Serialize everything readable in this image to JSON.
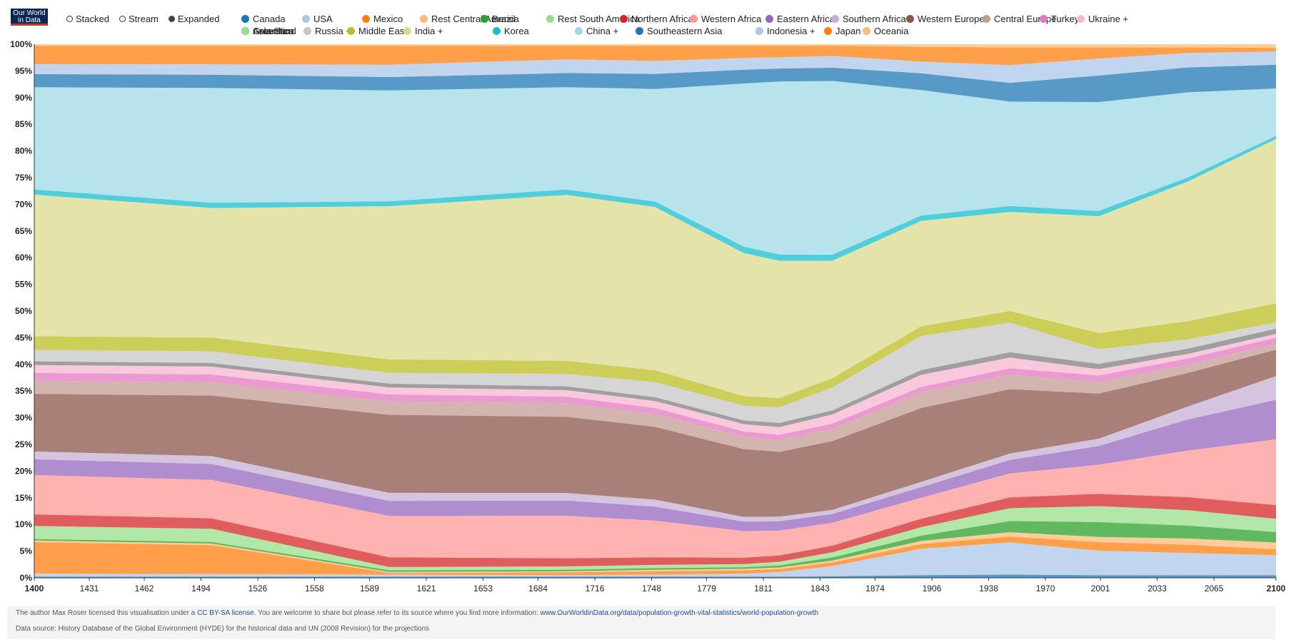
{
  "logo": {
    "line1": "Our World",
    "line2": "in Data"
  },
  "modes": [
    {
      "label": "Stacked",
      "selected": false
    },
    {
      "label": "Stream",
      "selected": false
    },
    {
      "label": "Expanded",
      "selected": true
    }
  ],
  "footer": {
    "license_prefix": "The author Max Roser licensed this visualisation under a",
    "license_link": "CC BY-SA license",
    "license_mid": ". You are welcome to share but please refer to its source where you find more information:",
    "source_link": "www.OurWorldinData.org/data/population-growth-vital-statistics/world-population-growth",
    "data_source": "Data source: History Database of the Global Environment (HYDE) for the historical data and UN (2008 Revision) for the projections"
  },
  "chart_data": {
    "type": "area",
    "stacking": "expanded (percent)",
    "x_ticks": [
      "1400",
      "1431",
      "1462",
      "1494",
      "1526",
      "1558",
      "1589",
      "1621",
      "1653",
      "1684",
      "1716",
      "1748",
      "1779",
      "1811",
      "1843",
      "1874",
      "1906",
      "1938",
      "1970",
      "2001",
      "2033",
      "2065",
      "2100"
    ],
    "y_ticks": [
      "0%",
      "5%",
      "10%",
      "15%",
      "20%",
      "25%",
      "30%",
      "35%",
      "40%",
      "45%",
      "50%",
      "55%",
      "60%",
      "65%",
      "70%",
      "75%",
      "80%",
      "85%",
      "90%",
      "95%",
      "100%"
    ],
    "ylim": [
      0,
      100
    ],
    "x": [
      1400,
      1500,
      1600,
      1700,
      1750,
      1800,
      1820,
      1850,
      1900,
      1950,
      2000,
      2050,
      2100
    ],
    "series": [
      {
        "name": "Canada",
        "color": "#1f77b4",
        "values": [
          0.2,
          0.2,
          0.2,
          0.2,
          0.2,
          0.2,
          0.2,
          0.3,
          0.5,
          0.6,
          0.5,
          0.5,
          0.5
        ]
      },
      {
        "name": "USA",
        "color": "#aec7e8",
        "values": [
          0.6,
          0.5,
          0.4,
          0.3,
          0.4,
          0.6,
          0.9,
          2.0,
          5.0,
          6.0,
          4.6,
          4.3,
          3.8
        ]
      },
      {
        "name": "Mexico",
        "color": "#ff7f0e",
        "values": [
          6.0,
          5.5,
          0.3,
          0.5,
          0.6,
          0.6,
          0.6,
          0.7,
          0.9,
          1.1,
          1.6,
          1.6,
          1.1
        ]
      },
      {
        "name": "Rest Central America",
        "color": "#ffbb78",
        "values": [
          0.3,
          0.3,
          0.2,
          0.2,
          0.3,
          0.3,
          0.3,
          0.4,
          0.6,
          0.8,
          1.0,
          1.2,
          1.3
        ]
      },
      {
        "name": "Brazil",
        "color": "#2ca02c",
        "values": [
          0.3,
          0.3,
          0.3,
          0.3,
          0.3,
          0.3,
          0.4,
          0.6,
          1.0,
          2.1,
          2.8,
          2.5,
          2.0
        ]
      },
      {
        "name": "Rest South America",
        "color": "#98df8a",
        "values": [
          2.5,
          2.5,
          0.6,
          0.6,
          0.6,
          0.6,
          0.7,
          1.0,
          1.6,
          2.4,
          3.0,
          3.0,
          2.5
        ]
      },
      {
        "name": "Northern Africa",
        "color": "#d62728",
        "values": [
          2.2,
          2.0,
          1.8,
          1.5,
          1.4,
          1.2,
          1.2,
          1.3,
          1.6,
          2.0,
          2.3,
          2.5,
          2.6
        ]
      },
      {
        "name": "Western Africa",
        "color": "#ff9896",
        "values": [
          7.5,
          7.3,
          7.7,
          7.8,
          6.8,
          5.0,
          4.8,
          4.5,
          4.0,
          4.5,
          5.5,
          9.0,
          12.5
        ]
      },
      {
        "name": "Eastern Africa",
        "color": "#9467bd",
        "values": [
          3.0,
          3.0,
          2.8,
          2.8,
          2.6,
          1.8,
          1.8,
          1.7,
          2.0,
          2.5,
          3.5,
          6.0,
          7.5
        ]
      },
      {
        "name": "Southern Africa",
        "color": "#c5b0d5",
        "values": [
          1.5,
          1.5,
          1.5,
          1.4,
          1.3,
          0.9,
          0.9,
          0.8,
          1.0,
          1.2,
          1.4,
          2.5,
          4.5
        ]
      },
      {
        "name": "Western Europe",
        "color": "#8c564b",
        "values": [
          11.0,
          11.5,
          14.5,
          14.0,
          13.5,
          12.8,
          12.5,
          13.5,
          14.0,
          12.0,
          8.5,
          6.5,
          5.0
        ]
      },
      {
        "name": "Central Europe",
        "color": "#c49c94",
        "values": [
          2.5,
          2.5,
          2.5,
          2.5,
          2.4,
          2.3,
          2.3,
          2.4,
          3.0,
          2.7,
          2.2,
          1.6,
          1.2
        ]
      },
      {
        "name": "Turkey",
        "color": "#e377c2",
        "values": [
          1.5,
          1.5,
          1.3,
          1.2,
          1.1,
          1.0,
          1.0,
          1.0,
          1.0,
          1.2,
          1.2,
          1.2,
          1.1
        ]
      },
      {
        "name": "Ukraine +",
        "color": "#f7b6d2",
        "values": [
          1.5,
          1.5,
          1.3,
          1.2,
          1.3,
          1.4,
          1.5,
          1.8,
          2.3,
          2.0,
          1.2,
          0.9,
          0.7
        ]
      },
      {
        "name": "Asia-Stan",
        "color": "#7f7f7f",
        "values": [
          0.7,
          0.7,
          0.7,
          0.7,
          0.7,
          0.7,
          0.8,
          0.8,
          0.9,
          1.0,
          1.0,
          1.0,
          1.0
        ]
      },
      {
        "name": "Russia +",
        "color": "#c7c7c7",
        "values": [
          2.2,
          2.2,
          2.0,
          2.3,
          2.8,
          2.8,
          3.0,
          4.5,
          6.5,
          5.5,
          2.8,
          1.8,
          1.2
        ]
      },
      {
        "name": "Middle East",
        "color": "#bcbd22",
        "values": [
          2.6,
          2.6,
          2.5,
          2.4,
          2.2,
          1.8,
          1.8,
          1.8,
          1.8,
          2.2,
          3.0,
          3.5,
          3.6
        ]
      },
      {
        "name": "India +",
        "color": "#dbdb8d",
        "values": [
          27.0,
          24.6,
          28.5,
          30.5,
          30.3,
          27.0,
          26.5,
          23.0,
          20.0,
          18.5,
          22.0,
          27.0,
          31.2
        ]
      },
      {
        "name": "Korea",
        "color": "#17becf",
        "values": [
          1.0,
          1.0,
          0.9,
          1.0,
          1.0,
          1.2,
          1.2,
          1.2,
          1.0,
          1.1,
          1.0,
          0.8,
          0.6
        ]
      },
      {
        "name": "China +",
        "color": "#9edae5",
        "values": [
          19.5,
          21.8,
          20.6,
          18.8,
          20.9,
          30.8,
          33.4,
          34.0,
          23.8,
          19.5,
          20.5,
          16.5,
          9.0
        ]
      },
      {
        "name": "Southeastern Asia",
        "color": "#1f77b4",
        "values": [
          2.5,
          2.5,
          2.5,
          2.6,
          2.8,
          2.6,
          2.5,
          2.6,
          3.2,
          3.5,
          5.0,
          4.8,
          4.5
        ]
      },
      {
        "name": "Indonesia +",
        "color": "#aec7e8",
        "values": [
          1.9,
          2.0,
          2.3,
          2.5,
          2.4,
          2.2,
          2.2,
          2.3,
          2.2,
          3.3,
          3.2,
          2.8,
          2.5
        ]
      },
      {
        "name": "Japan",
        "color": "#ff7f0e",
        "values": [
          3.5,
          3.5,
          3.5,
          2.5,
          2.8,
          2.3,
          2.2,
          2.0,
          2.8,
          3.3,
          2.1,
          1.1,
          0.7
        ]
      },
      {
        "name": "Oceania",
        "color": "#ffbb78",
        "values": [
          0.3,
          0.3,
          0.3,
          0.3,
          0.3,
          0.3,
          0.3,
          0.3,
          0.5,
          0.6,
          0.6,
          0.6,
          0.7
        ]
      },
      {
        "name": "Greenland",
        "color": "#2ca02c",
        "values": [
          0.0,
          0.0,
          0.0,
          0.0,
          0.0,
          0.0,
          0.0,
          0.0,
          0.0,
          0.0,
          0.0,
          0.0,
          0.0
        ]
      },
      {
        "name": "Antarctica",
        "color": "#98df8a",
        "values": [
          0.0,
          0.0,
          0.0,
          0.0,
          0.0,
          0.0,
          0.0,
          0.0,
          0.0,
          0.0,
          0.0,
          0.0,
          0.0
        ]
      }
    ]
  }
}
